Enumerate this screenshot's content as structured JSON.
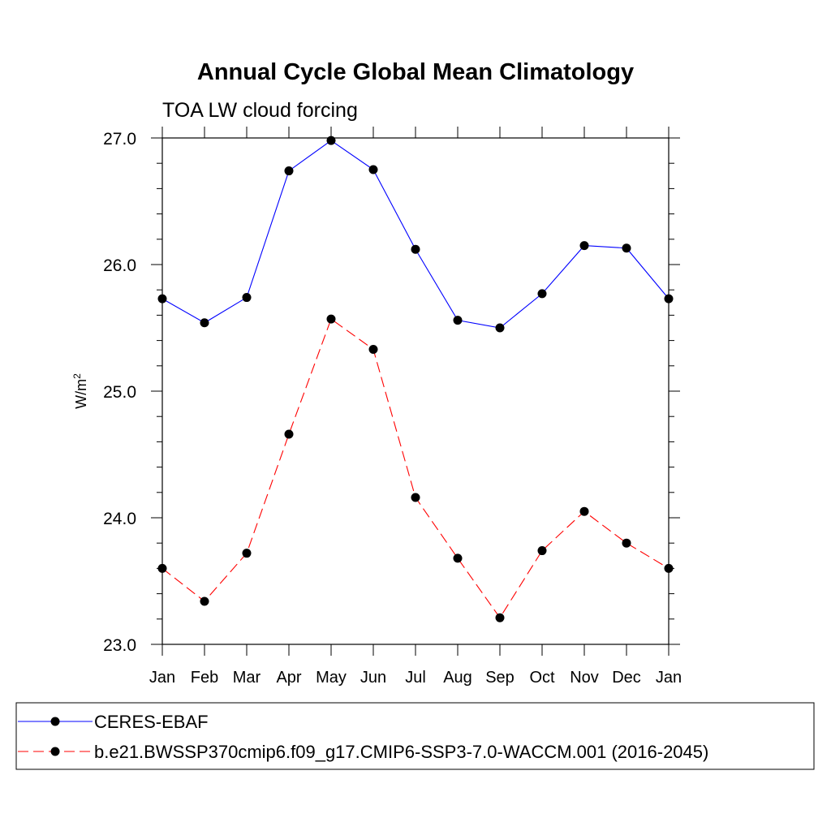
{
  "chart_data": {
    "type": "line",
    "title": "Annual Cycle Global Mean Climatology",
    "subtitle": "TOA LW cloud forcing",
    "xlabel": "",
    "ylabel": "W/m",
    "ylabel_superscript": "2",
    "categories": [
      "Jan",
      "Feb",
      "Mar",
      "Apr",
      "May",
      "Jun",
      "Jul",
      "Aug",
      "Sep",
      "Oct",
      "Nov",
      "Dec",
      "Jan"
    ],
    "ylim": [
      23.0,
      27.0
    ],
    "yticks": [
      "23.0",
      "24.0",
      "25.0",
      "26.0",
      "27.0"
    ],
    "grid": false,
    "legend_position": "bottom",
    "series": [
      {
        "name": "CERES-EBAF",
        "color": "#0000ff",
        "dash": "solid",
        "values": [
          25.73,
          25.54,
          25.74,
          26.74,
          26.98,
          26.75,
          26.12,
          25.56,
          25.5,
          25.77,
          26.15,
          26.13,
          25.73
        ]
      },
      {
        "name": "b.e21.BWSSP370cmip6.f09_g17.CMIP6-SSP3-7.0-WACCM.001 (2016-2045)",
        "color": "#ff0000",
        "dash": "dashed",
        "values": [
          23.6,
          23.34,
          23.72,
          24.66,
          25.57,
          25.33,
          24.16,
          23.68,
          23.21,
          23.74,
          24.05,
          23.8,
          23.6
        ]
      }
    ]
  }
}
